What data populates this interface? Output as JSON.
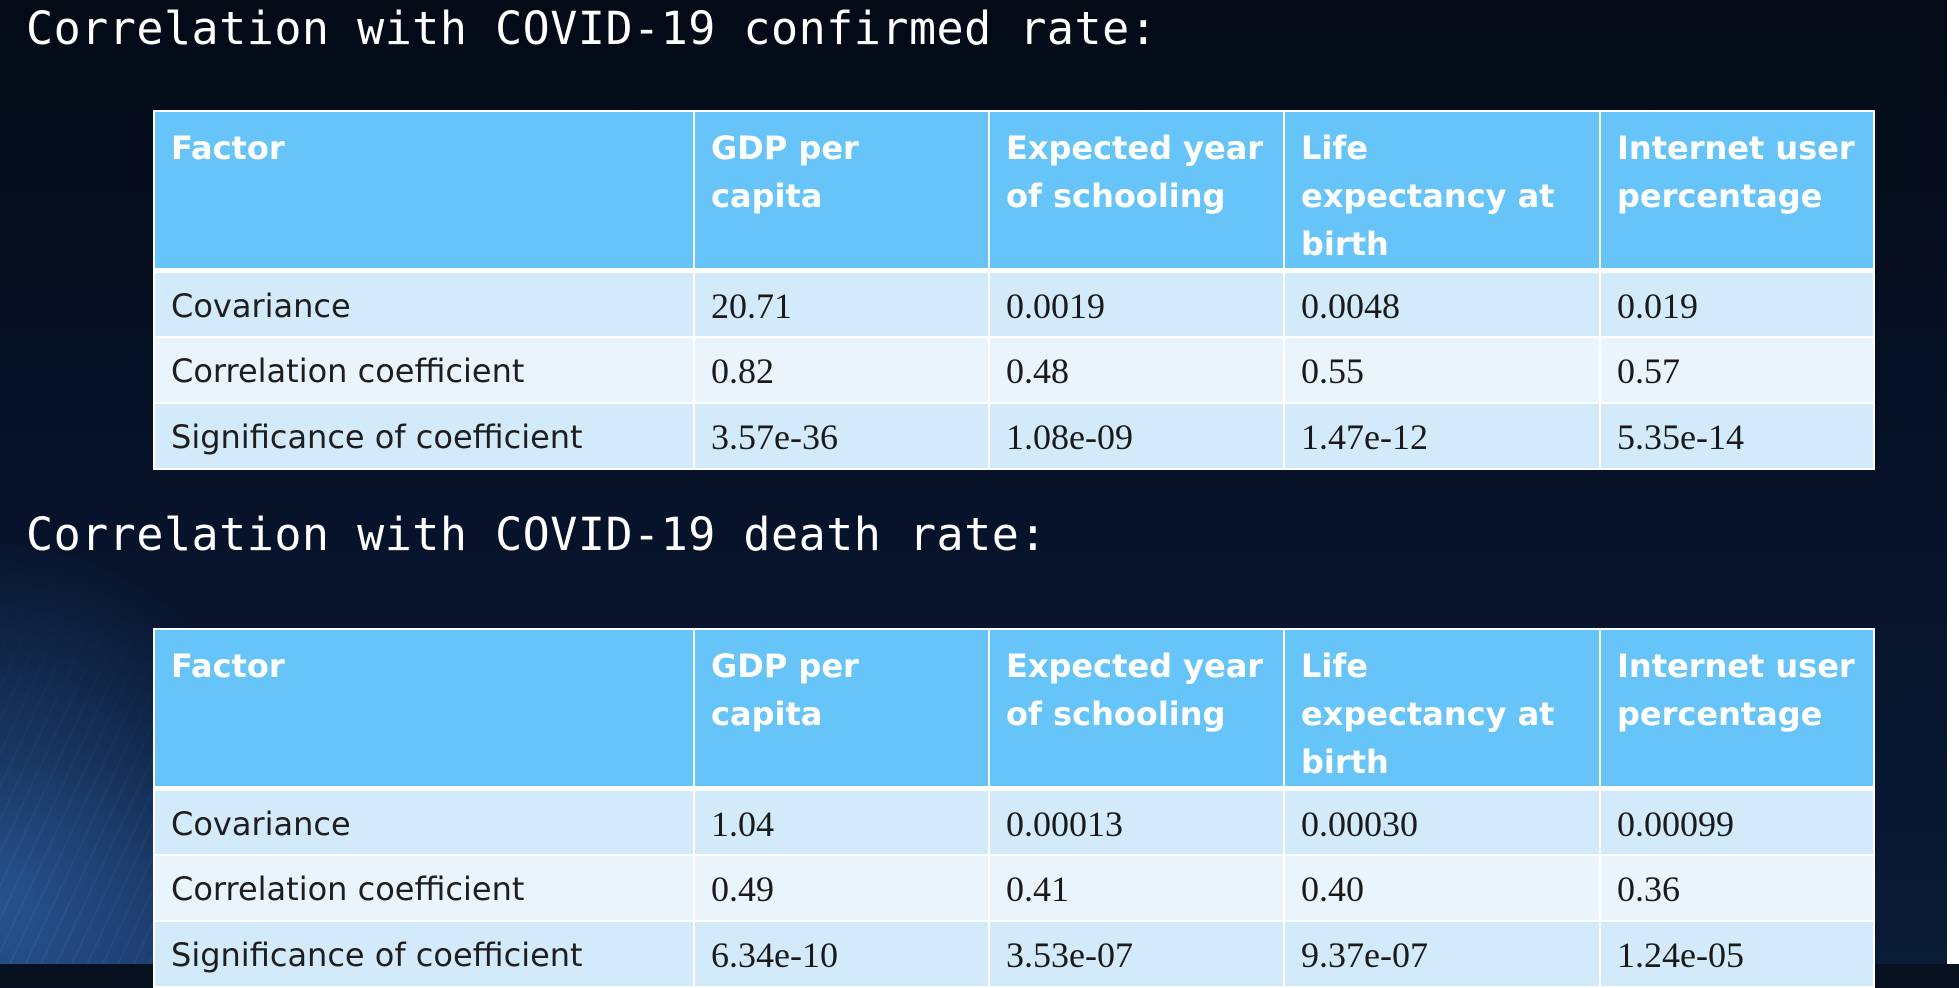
{
  "sections": [
    {
      "title": "Correlation with COVID-19 confirmed rate:",
      "headers": [
        "Factor",
        "GDP per capita",
        "Expected year of schooling",
        "Life expectancy at birth",
        "Internet user percentage"
      ],
      "rows": [
        [
          "Covariance",
          "20.71",
          "0.0019",
          "0.0048",
          "0.019"
        ],
        [
          "Correlation coefficient",
          "0.82",
          "0.48",
          "0.55",
          "0.57"
        ],
        [
          "Significance of coefficient",
          "3.57e-36",
          "1.08e-09",
          "1.47e-12",
          "5.35e-14"
        ]
      ]
    },
    {
      "title": "Correlation with COVID-19 death rate:",
      "headers": [
        "Factor",
        "GDP per capita",
        "Expected year of schooling",
        "Life expectancy at birth",
        "Internet user percentage"
      ],
      "rows": [
        [
          "Covariance",
          "1.04",
          "0.00013",
          "0.00030",
          "0.00099"
        ],
        [
          "Correlation coefficient",
          "0.49",
          "0.41",
          "0.40",
          "0.36"
        ],
        [
          "Significance of coefficient",
          "6.34e-10",
          "3.53e-07",
          "9.37e-07",
          "1.24e-05"
        ]
      ]
    }
  ],
  "colors": {
    "background": "#06101f",
    "header_fill": "#66c4f8",
    "row_fill_dark": "#d3eafb",
    "row_fill_light": "#e9f4fd",
    "heading_text": "#ffffff"
  }
}
